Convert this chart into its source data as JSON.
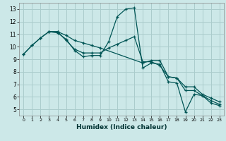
{
  "title": "",
  "xlabel": "Humidex (Indice chaleur)",
  "background_color": "#cce8e8",
  "grid_color": "#aacccc",
  "line_color": "#005555",
  "xlim": [
    -0.5,
    23.5
  ],
  "ylim": [
    4.5,
    13.5
  ],
  "yticks": [
    5,
    6,
    7,
    8,
    9,
    10,
    11,
    12,
    13
  ],
  "xticks": [
    0,
    1,
    2,
    3,
    4,
    5,
    6,
    7,
    8,
    9,
    10,
    11,
    12,
    13,
    14,
    15,
    16,
    17,
    18,
    19,
    20,
    21,
    22,
    23
  ],
  "line1_x": [
    0,
    1,
    2,
    3,
    4,
    5,
    6,
    7,
    8,
    9,
    10,
    11,
    12,
    13,
    14,
    15,
    16,
    17,
    18,
    19,
    20,
    21,
    22,
    23
  ],
  "line1_y": [
    9.4,
    10.1,
    10.7,
    11.2,
    11.1,
    10.6,
    9.7,
    9.2,
    9.3,
    9.3,
    10.4,
    12.4,
    13.0,
    13.1,
    8.3,
    8.7,
    8.6,
    7.2,
    7.1,
    4.8,
    6.2,
    6.1,
    5.5,
    5.3
  ],
  "line2_x": [
    0,
    1,
    2,
    3,
    4,
    5,
    6,
    7,
    8,
    9,
    10,
    11,
    12,
    13,
    14,
    15,
    16,
    17,
    18,
    19,
    20,
    21,
    22,
    23
  ],
  "line2_y": [
    9.4,
    10.1,
    10.7,
    11.2,
    11.2,
    10.5,
    9.8,
    9.5,
    9.5,
    9.5,
    9.9,
    10.2,
    10.5,
    10.8,
    8.8,
    8.8,
    8.5,
    7.6,
    7.5,
    6.5,
    6.5,
    6.1,
    5.7,
    5.4
  ],
  "line3_x": [
    3,
    4,
    5,
    6,
    7,
    8,
    9,
    14,
    15,
    16,
    17,
    18,
    19,
    20,
    21,
    22,
    23
  ],
  "line3_y": [
    11.2,
    11.2,
    10.9,
    10.5,
    10.3,
    10.1,
    9.9,
    8.7,
    8.9,
    8.9,
    7.6,
    7.5,
    6.8,
    6.8,
    6.2,
    5.9,
    5.6
  ]
}
